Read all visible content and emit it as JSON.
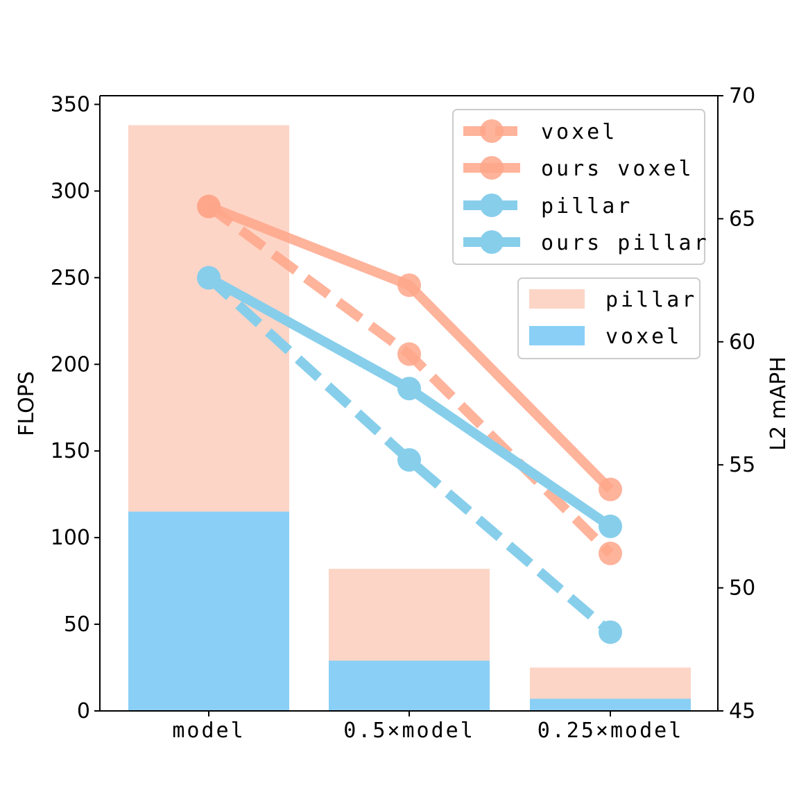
{
  "chart_data": {
    "type": "bar",
    "categories": [
      "model",
      "0.5×model",
      "0.25×model"
    ],
    "bar_series": [
      {
        "name": "pillar",
        "values": [
          338,
          82,
          25
        ],
        "color": "#fdd5c6"
      },
      {
        "name": "voxel",
        "values": [
          115,
          29,
          7
        ],
        "color": "#89cff6"
      }
    ],
    "line_series": [
      {
        "name": "voxel",
        "values": [
          65.5,
          59.5,
          51.4
        ],
        "color": "#fea68a",
        "style": "dashed"
      },
      {
        "name": "ours voxel",
        "values": [
          65.5,
          62.3,
          54.0
        ],
        "color": "#fea68a",
        "style": "solid"
      },
      {
        "name": "pillar",
        "values": [
          62.6,
          55.2,
          48.2
        ],
        "color": "#87ceeb",
        "style": "dashed"
      },
      {
        "name": "ours pillar",
        "values": [
          62.6,
          58.1,
          52.5
        ],
        "color": "#87ceeb",
        "style": "solid"
      }
    ],
    "ylabel": "FLOPS",
    "y2label": "L2 mAPH",
    "ylim": [
      0,
      355
    ],
    "y2lim": [
      45,
      70
    ],
    "yticks": [
      0,
      50,
      100,
      150,
      200,
      250,
      300,
      350
    ],
    "y2ticks": [
      45,
      50,
      55,
      60,
      65,
      70
    ],
    "grid": false,
    "legend_lines_placement": "upper-right",
    "legend_bars_placement": "right, below line legend"
  }
}
